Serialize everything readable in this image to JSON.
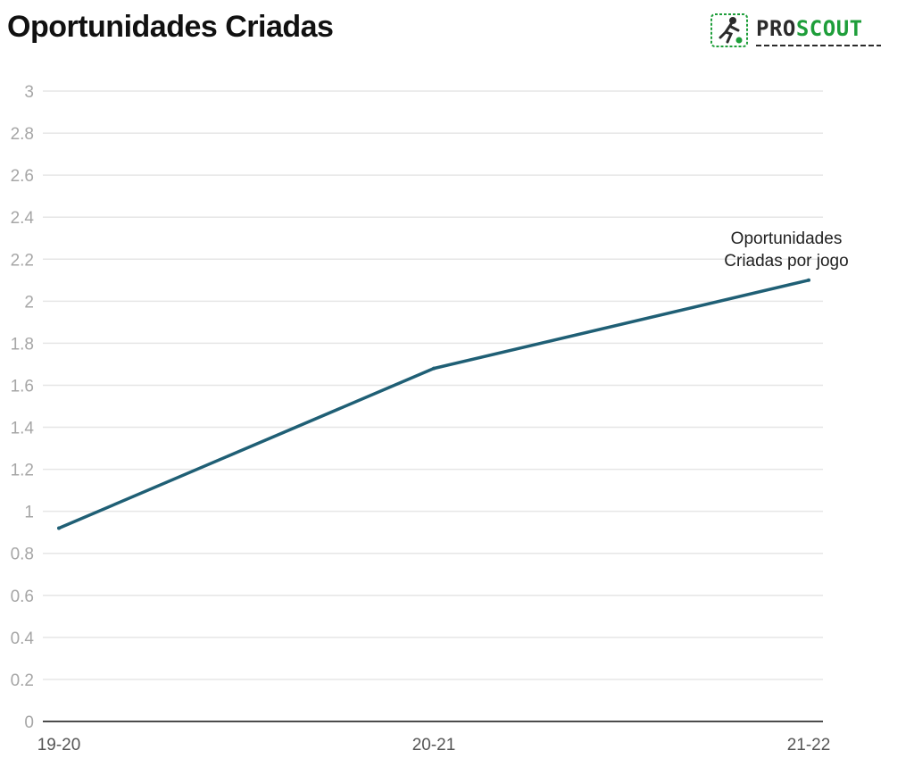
{
  "chart_data": {
    "type": "line",
    "title": "Oportunidades Criadas",
    "xlabel": "",
    "ylabel": "",
    "categories": [
      "19-20",
      "20-21",
      "21-22"
    ],
    "ylim": [
      0,
      3
    ],
    "yticks": [
      0,
      0.2,
      0.4,
      0.6,
      0.8,
      1,
      1.2,
      1.4,
      1.6,
      1.8,
      2,
      2.2,
      2.4,
      2.6,
      2.8,
      3
    ],
    "grid": true,
    "series": [
      {
        "name": "Oportunidades Criadas por jogo",
        "label_lines": [
          "Oportunidades",
          "Criadas por jogo"
        ],
        "values": [
          0.92,
          1.68,
          2.1
        ],
        "color": "#1f5f75"
      }
    ]
  },
  "logo": {
    "text_pro": "PRO",
    "text_scout": "SCOUT",
    "icon": "soccer-player-icon",
    "colors": {
      "dark": "#2b2b2b",
      "green": "#1e9e3a"
    }
  },
  "colors": {
    "grid": "#e6e6e6",
    "axis": "#111111",
    "line": "#1f5f75"
  }
}
